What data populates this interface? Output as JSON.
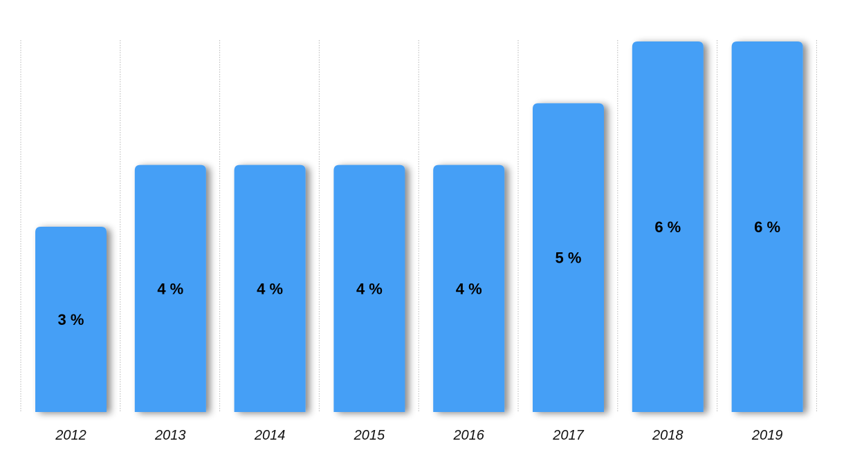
{
  "chart_data": {
    "type": "bar",
    "categories": [
      "2012",
      "2013",
      "2014",
      "2015",
      "2016",
      "2017",
      "2018",
      "2019"
    ],
    "values": [
      3,
      4,
      4,
      4,
      4,
      5,
      6,
      6
    ],
    "labels": [
      "3 %",
      "4 %",
      "4 %",
      "4 %",
      "4 %",
      "5 %",
      "6 %",
      "6 %"
    ],
    "title": "",
    "xlabel": "",
    "ylabel": "",
    "ylim": [
      0,
      6
    ],
    "grid": "vertical dotted separators",
    "legend": "none",
    "bar_color": "#459FF6",
    "bar_shadow": true,
    "data_label_color": "#000000",
    "tick_label_color": "#111111"
  }
}
